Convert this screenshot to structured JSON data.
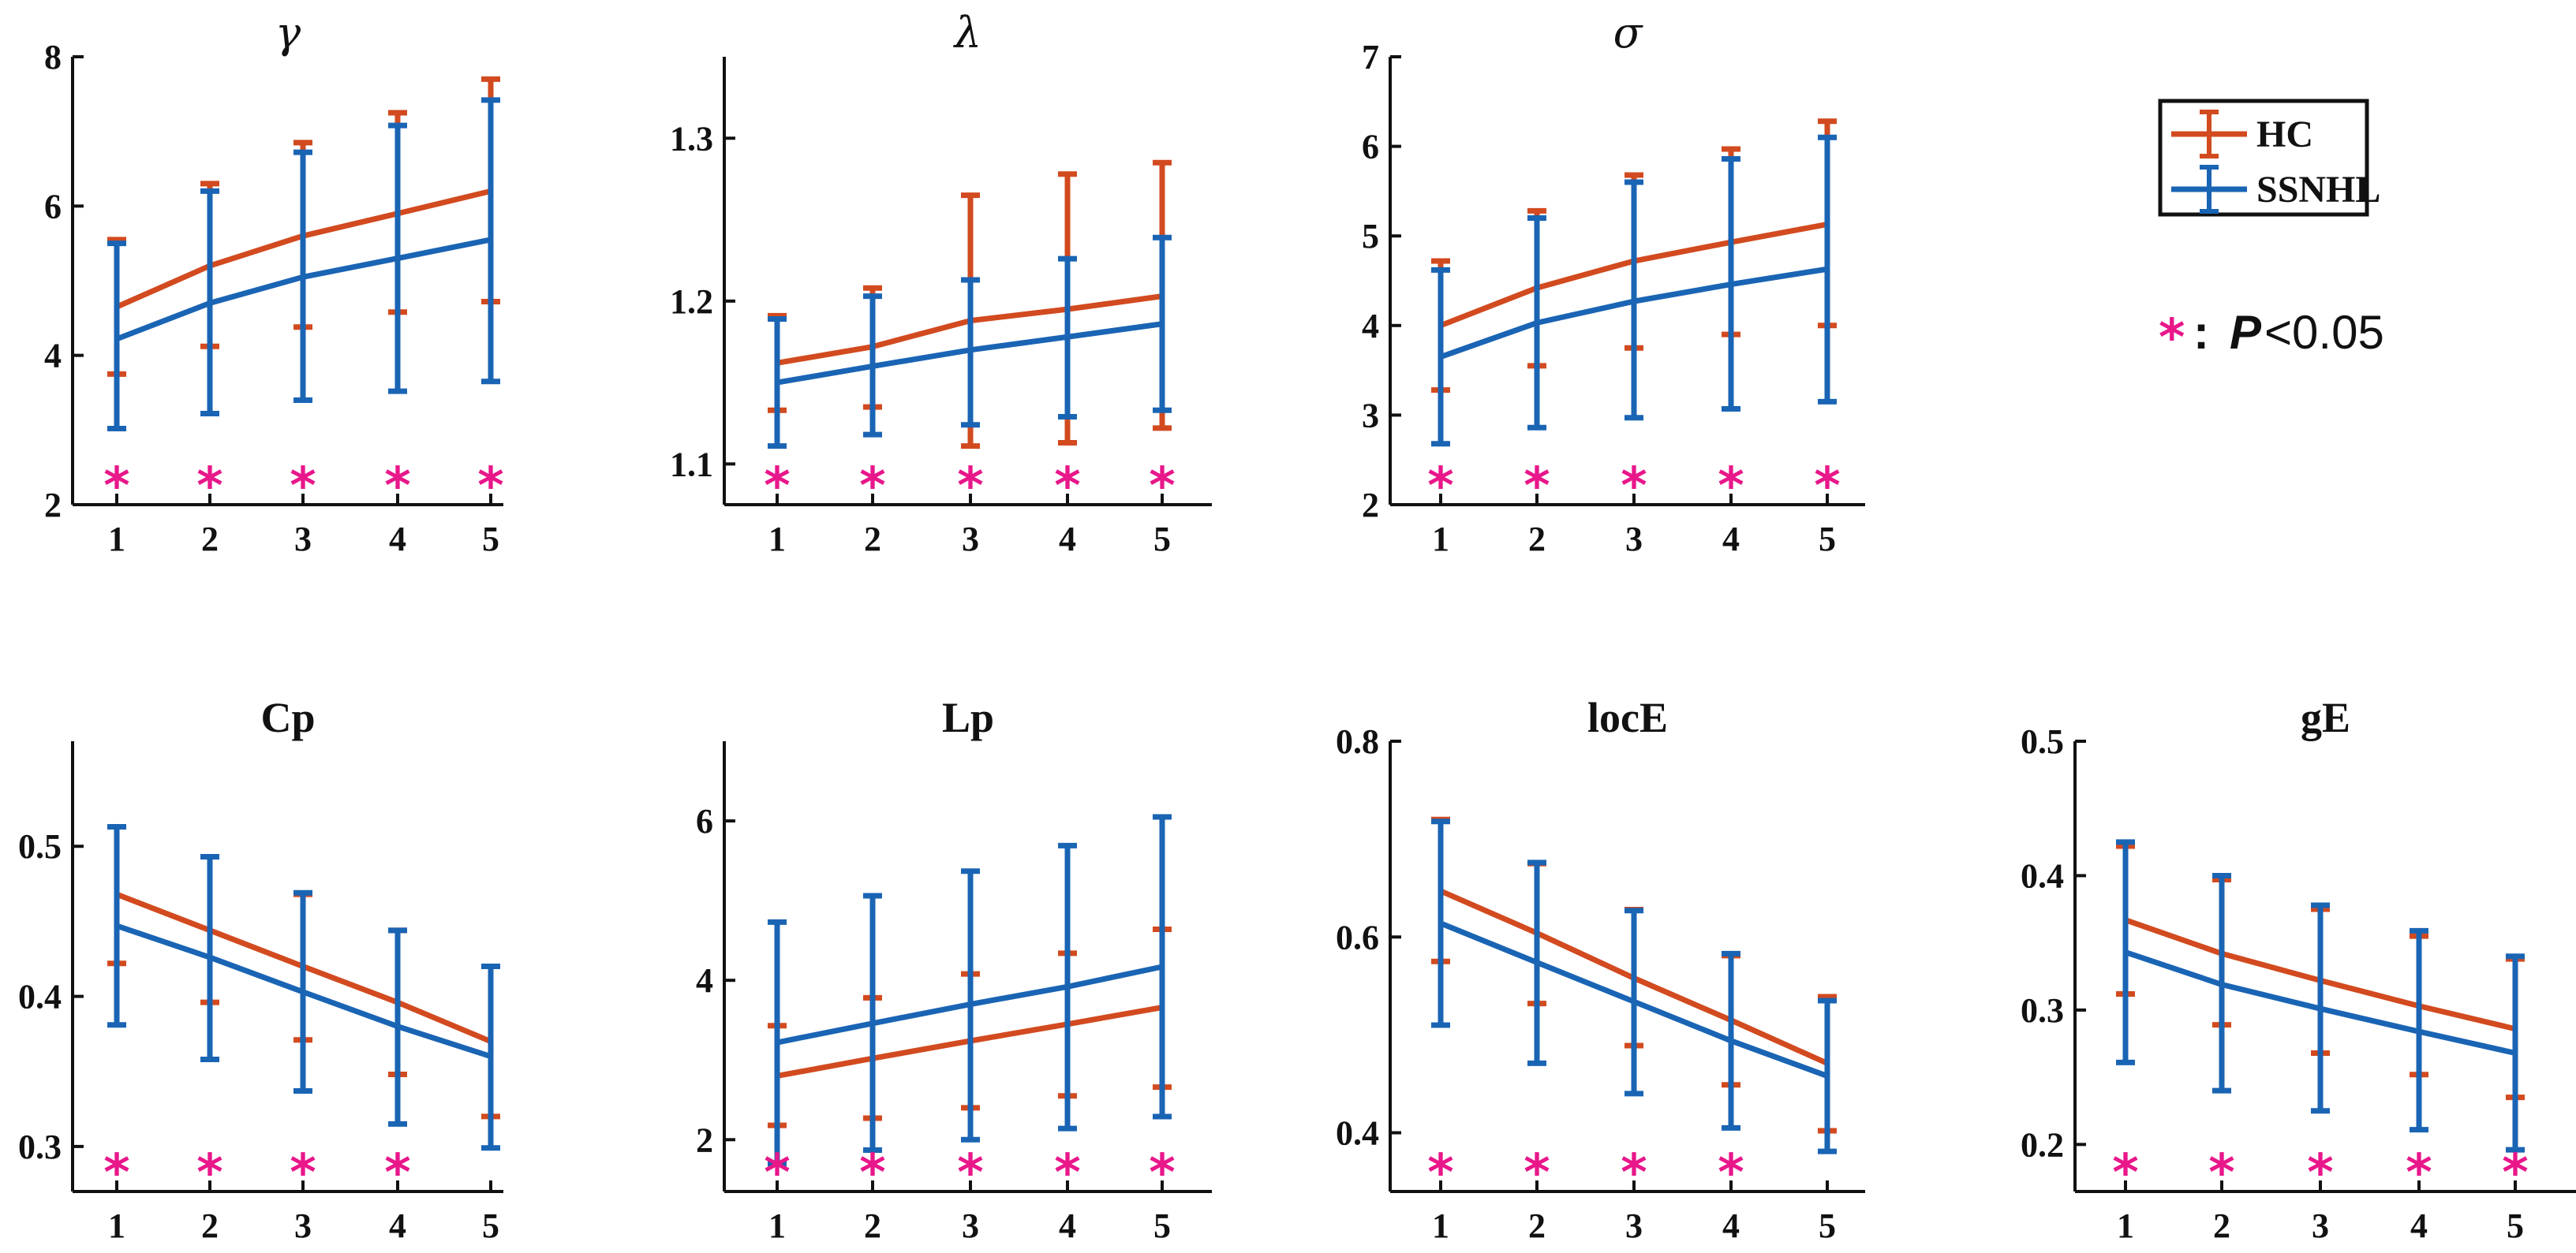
{
  "colors": {
    "hc": "#D24A1F",
    "ssnhl": "#1A64B4",
    "star": "#E8178A",
    "axis": "#111111"
  },
  "legend": {
    "hc_label": "HC",
    "ssnhl_label": "SSNHL"
  },
  "significance_note": {
    "star": "*",
    "separator": ":",
    "p_symbol": "P",
    "threshold": "<0.05"
  },
  "chart_data": [
    {
      "type": "line",
      "title": "γ",
      "title_style": "greek",
      "x": [
        1,
        2,
        3,
        4,
        5
      ],
      "ylim": [
        2,
        8
      ],
      "yticks": [
        2,
        4,
        6,
        8
      ],
      "series": [
        {
          "name": "HC",
          "values": [
            4.65,
            5.2,
            5.6,
            5.9,
            6.2
          ],
          "lower": [
            3.75,
            4.12,
            4.38,
            4.58,
            4.72
          ],
          "upper": [
            5.55,
            6.3,
            6.85,
            7.25,
            7.7
          ]
        },
        {
          "name": "SSNHL",
          "values": [
            4.22,
            4.7,
            5.05,
            5.3,
            5.55
          ],
          "lower": [
            3.02,
            3.22,
            3.4,
            3.52,
            3.65
          ],
          "upper": [
            5.5,
            6.2,
            6.72,
            7.08,
            7.42
          ]
        }
      ],
      "significant": [
        true,
        true,
        true,
        true,
        true
      ]
    },
    {
      "type": "line",
      "title": "λ",
      "title_style": "greek",
      "x": [
        1,
        2,
        3,
        4,
        5
      ],
      "ylim": [
        1.075,
        1.35
      ],
      "yticks": [
        1.1,
        1.2,
        1.3
      ],
      "series": [
        {
          "name": "HC",
          "values": [
            1.162,
            1.172,
            1.188,
            1.195,
            1.203
          ],
          "lower": [
            1.133,
            1.135,
            1.111,
            1.113,
            1.122
          ],
          "upper": [
            1.191,
            1.208,
            1.265,
            1.278,
            1.285
          ]
        },
        {
          "name": "SSNHL",
          "values": [
            1.15,
            1.16,
            1.17,
            1.178,
            1.186
          ],
          "lower": [
            1.111,
            1.118,
            1.124,
            1.129,
            1.133
          ],
          "upper": [
            1.189,
            1.203,
            1.213,
            1.226,
            1.239
          ]
        }
      ],
      "significant": [
        true,
        true,
        true,
        true,
        true
      ]
    },
    {
      "type": "line",
      "title": "σ",
      "title_style": "greek",
      "x": [
        1,
        2,
        3,
        4,
        5
      ],
      "ylim": [
        2,
        7
      ],
      "yticks": [
        2,
        3,
        4,
        5,
        6,
        7
      ],
      "series": [
        {
          "name": "HC",
          "values": [
            4.0,
            4.42,
            4.72,
            4.93,
            5.13
          ],
          "lower": [
            3.28,
            3.55,
            3.75,
            3.9,
            4.0
          ],
          "upper": [
            4.72,
            5.28,
            5.68,
            5.97,
            6.28
          ]
        },
        {
          "name": "SSNHL",
          "values": [
            3.65,
            4.03,
            4.27,
            4.46,
            4.63
          ],
          "lower": [
            2.68,
            2.86,
            2.97,
            3.07,
            3.15
          ],
          "upper": [
            4.62,
            5.2,
            5.6,
            5.86,
            6.1
          ]
        }
      ],
      "significant": [
        true,
        true,
        true,
        true,
        true
      ]
    },
    {
      "type": "line",
      "title": "Cp",
      "title_style": "bold",
      "x": [
        1,
        2,
        3,
        4,
        5
      ],
      "ylim": [
        0.27,
        0.57
      ],
      "yticks": [
        0.3,
        0.4,
        0.5
      ],
      "series": [
        {
          "name": "HC",
          "values": [
            0.468,
            0.444,
            0.42,
            0.396,
            0.37
          ],
          "lower": [
            0.422,
            0.396,
            0.371,
            0.348,
            0.32
          ],
          "upper": [
            0.513,
            0.493,
            0.468,
            0.444,
            0.42
          ]
        },
        {
          "name": "SSNHL",
          "values": [
            0.447,
            0.426,
            0.403,
            0.38,
            0.36
          ],
          "lower": [
            0.381,
            0.358,
            0.337,
            0.315,
            0.299
          ],
          "upper": [
            0.513,
            0.493,
            0.469,
            0.444,
            0.42
          ]
        }
      ],
      "significant": [
        true,
        true,
        true,
        true,
        false
      ]
    },
    {
      "type": "line",
      "title": "Lp",
      "title_style": "bold",
      "x": [
        1,
        2,
        3,
        4,
        5
      ],
      "ylim": [
        1.35,
        7.0
      ],
      "yticks": [
        2,
        4,
        6
      ],
      "series": [
        {
          "name": "HC",
          "values": [
            2.8,
            3.02,
            3.24,
            3.45,
            3.66
          ],
          "lower": [
            2.18,
            2.27,
            2.4,
            2.55,
            2.66
          ],
          "upper": [
            3.43,
            3.78,
            4.08,
            4.34,
            4.64
          ]
        },
        {
          "name": "SSNHL",
          "values": [
            3.22,
            3.46,
            3.7,
            3.92,
            4.17
          ],
          "lower": [
            1.7,
            1.87,
            2.0,
            2.14,
            2.29
          ],
          "upper": [
            4.73,
            5.06,
            5.37,
            5.69,
            6.05
          ]
        }
      ],
      "significant": [
        true,
        true,
        true,
        true,
        true
      ]
    },
    {
      "type": "line",
      "title": "locE",
      "title_style": "bold",
      "x": [
        1,
        2,
        3,
        4,
        5
      ],
      "ylim": [
        0.34,
        0.8
      ],
      "yticks": [
        0.4,
        0.6,
        0.8
      ],
      "series": [
        {
          "name": "HC",
          "values": [
            0.647,
            0.604,
            0.558,
            0.515,
            0.471
          ],
          "lower": [
            0.575,
            0.532,
            0.489,
            0.449,
            0.402
          ],
          "upper": [
            0.72,
            0.675,
            0.628,
            0.581,
            0.539
          ]
        },
        {
          "name": "SSNHL",
          "values": [
            0.614,
            0.574,
            0.534,
            0.494,
            0.458
          ],
          "lower": [
            0.51,
            0.471,
            0.44,
            0.405,
            0.381
          ],
          "upper": [
            0.718,
            0.676,
            0.627,
            0.583,
            0.535
          ]
        }
      ],
      "significant": [
        true,
        true,
        true,
        true,
        false
      ]
    },
    {
      "type": "line",
      "title": "gE",
      "title_style": "bold",
      "x": [
        1,
        2,
        3,
        4,
        5
      ],
      "ylim": [
        0.165,
        0.5
      ],
      "yticks": [
        0.2,
        0.3,
        0.4,
        0.5
      ],
      "series": [
        {
          "name": "HC",
          "values": [
            0.367,
            0.342,
            0.322,
            0.303,
            0.286
          ],
          "lower": [
            0.312,
            0.289,
            0.268,
            0.252,
            0.235
          ],
          "upper": [
            0.422,
            0.397,
            0.375,
            0.355,
            0.338
          ]
        },
        {
          "name": "SSNHL",
          "values": [
            0.343,
            0.319,
            0.301,
            0.284,
            0.268
          ],
          "lower": [
            0.261,
            0.24,
            0.225,
            0.211,
            0.196
          ],
          "upper": [
            0.425,
            0.4,
            0.378,
            0.359,
            0.34
          ]
        }
      ],
      "significant": [
        true,
        true,
        true,
        true,
        true
      ]
    }
  ]
}
